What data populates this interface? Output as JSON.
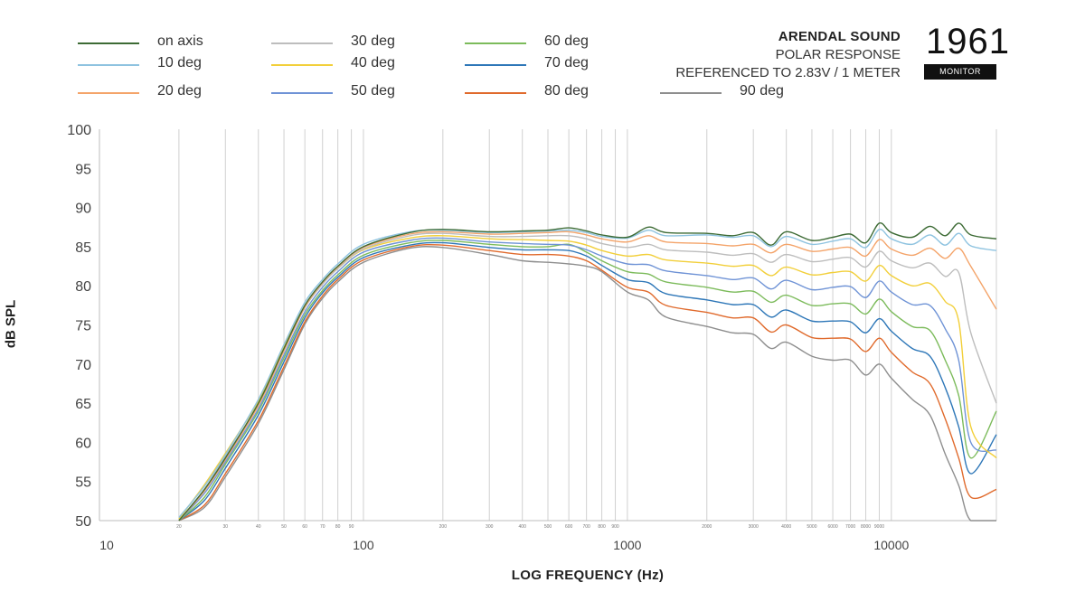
{
  "legend": [
    {
      "label": "on axis",
      "color": "#3d6b35"
    },
    {
      "label": "10 deg",
      "color": "#8ec3e0"
    },
    {
      "label": "20 deg",
      "color": "#f4a46a"
    },
    {
      "label": "30 deg",
      "color": "#bdbdbd"
    },
    {
      "label": "40 deg",
      "color": "#f2cf3a"
    },
    {
      "label": "50 deg",
      "color": "#6f93d6"
    },
    {
      "label": "60 deg",
      "color": "#7cbb5b"
    },
    {
      "label": "70 deg",
      "color": "#2e77b8"
    },
    {
      "label": "80 deg",
      "color": "#e06a2c"
    },
    {
      "label": "90 deg",
      "color": "#8e8e8e"
    }
  ],
  "brand": {
    "name": "ARENDAL SOUND",
    "line1": "POLAR RESPONSE",
    "line2": "REFERENCED TO 2.83V / 1 METER",
    "model": "1961",
    "badge": "MONITOR"
  },
  "chart_data": {
    "type": "line",
    "xscale": "log",
    "xlim": [
      10,
      25000
    ],
    "ylim": [
      50,
      100
    ],
    "xlabel": "LOG FREQUENCY (Hz)",
    "ylabel": "dB SPL",
    "grid": "vertical",
    "y_ticks": [
      100,
      95,
      90,
      85,
      80,
      75,
      70,
      65,
      60,
      55,
      50
    ],
    "x_major_ticks": [
      10,
      100,
      1000,
      10000
    ],
    "x_major_tick_labels": [
      "10",
      "100",
      "1000",
      "10000"
    ],
    "x_minor_ticks": [
      20,
      30,
      40,
      50,
      60,
      70,
      80,
      90,
      200,
      300,
      400,
      500,
      600,
      700,
      800,
      900,
      2000,
      3000,
      4000,
      5000,
      6000,
      7000,
      8000,
      9000
    ],
    "x_minor_tick_labels": [
      "20",
      "30",
      "40",
      "50",
      "60",
      "70",
      "80",
      "90",
      "200",
      "300",
      "400",
      "500",
      "600",
      "700",
      "800",
      "900",
      "2000",
      "3000",
      "4000",
      "5000",
      "6000",
      "7000",
      "8000",
      "9000"
    ],
    "x": [
      20,
      25,
      30,
      40,
      50,
      60,
      70,
      80,
      100,
      150,
      200,
      300,
      400,
      500,
      600,
      700,
      800,
      1000,
      1200,
      1400,
      2000,
      2500,
      3000,
      3500,
      4000,
      5000,
      6000,
      7000,
      8000,
      9000,
      10000,
      12000,
      14000,
      16000,
      18000,
      20000,
      25000
    ],
    "series": [
      {
        "name": "on axis",
        "values": [
          50,
          54,
          58,
          65,
          72,
          77.5,
          80.5,
          82.5,
          85,
          86.8,
          87.2,
          86.9,
          87,
          87.1,
          87.4,
          87,
          86.5,
          86.2,
          87.5,
          86.8,
          86.7,
          86.4,
          86.8,
          85.2,
          86.9,
          85.8,
          86.2,
          86.6,
          85.5,
          88,
          86.8,
          86.2,
          87.6,
          86.4,
          88,
          86.5,
          86
        ]
      },
      {
        "name": "10 deg",
        "values": [
          50.4,
          54.4,
          58.4,
          65.5,
          72.5,
          77.9,
          80.8,
          82.8,
          85.3,
          86.9,
          87.1,
          86.8,
          86.9,
          87,
          87.1,
          86.8,
          86.3,
          86.1,
          87.1,
          86.4,
          86.5,
          86.2,
          86.4,
          85,
          86.3,
          85.3,
          85.7,
          86,
          84.9,
          87.2,
          86,
          85.3,
          86.5,
          85.2,
          86.7,
          85.1,
          84.5
        ]
      },
      {
        "name": "20 deg",
        "values": [
          50,
          53.8,
          57.8,
          64.7,
          71.7,
          77.3,
          80.4,
          82.4,
          84.9,
          86.6,
          86.9,
          86.6,
          86.7,
          86.8,
          86.9,
          86.5,
          86,
          85.6,
          86.4,
          85.6,
          85.4,
          85.1,
          85.3,
          84.2,
          85.3,
          84.4,
          84.7,
          84.9,
          83.8,
          85.9,
          84.7,
          83.9,
          84.8,
          83.5,
          84.8,
          82.5,
          77
        ]
      },
      {
        "name": "30 deg",
        "values": [
          50,
          54,
          58.2,
          64.8,
          71.8,
          77.2,
          80.2,
          82.2,
          84.7,
          86.4,
          86.7,
          86.3,
          86.3,
          86.4,
          86.4,
          86,
          85.4,
          84.9,
          85.3,
          84.6,
          84.3,
          83.9,
          84.1,
          83,
          84,
          83.1,
          83.4,
          83.6,
          82.4,
          84.4,
          83.2,
          82.3,
          82.9,
          81.2,
          81.7,
          74,
          65
        ]
      },
      {
        "name": "40 deg",
        "values": [
          50.2,
          54.6,
          58.6,
          65.3,
          72.2,
          77.5,
          80.4,
          82.2,
          84.6,
          86.1,
          86.4,
          86,
          85.9,
          85.8,
          85.7,
          85.2,
          84.5,
          83.8,
          84,
          83.3,
          82.9,
          82.5,
          82.6,
          81.3,
          82.4,
          81.4,
          81.7,
          81.8,
          80.6,
          82.6,
          81.3,
          80,
          80.3,
          78,
          75.5,
          62,
          58
        ]
      },
      {
        "name": "50 deg",
        "values": [
          49.5,
          53.5,
          57.5,
          64.3,
          71.2,
          76.7,
          79.8,
          81.8,
          84.3,
          85.8,
          86.1,
          85.6,
          85.4,
          85.3,
          85.2,
          84.6,
          83.8,
          82.8,
          82.7,
          81.9,
          81.3,
          80.8,
          81,
          79.6,
          80.7,
          79.5,
          79.8,
          79.9,
          78.5,
          80.6,
          79.2,
          77.6,
          77.5,
          74.5,
          70.5,
          60,
          59
        ]
      },
      {
        "name": "60 deg",
        "values": [
          49.2,
          53,
          57.2,
          64,
          70.8,
          76.3,
          79.4,
          81.4,
          83.9,
          85.5,
          85.8,
          85.3,
          85,
          85,
          85.3,
          84.3,
          83.2,
          81.8,
          81.5,
          80.5,
          79.8,
          79.2,
          79.3,
          77.9,
          78.8,
          77.5,
          77.7,
          77.7,
          76.4,
          78.3,
          76.7,
          74.8,
          74.3,
          70.5,
          66,
          58,
          64
        ]
      },
      {
        "name": "70 deg",
        "values": [
          48.8,
          52.6,
          56.7,
          63.5,
          70.3,
          75.9,
          79.1,
          81.1,
          83.6,
          85.2,
          85.5,
          84.9,
          84.6,
          84.6,
          84.5,
          83.8,
          82.6,
          80.8,
          80.4,
          79,
          78.2,
          77.6,
          77.6,
          76,
          76.9,
          75.5,
          75.5,
          75.4,
          74,
          75.8,
          74.2,
          72,
          71,
          67,
          62,
          56,
          61
        ]
      },
      {
        "name": "80 deg",
        "values": [
          48.3,
          52,
          56,
          62.8,
          69.7,
          75.4,
          78.7,
          80.8,
          83.3,
          85,
          85.2,
          84.5,
          84,
          84,
          83.8,
          83.2,
          82,
          79.8,
          79.2,
          77.5,
          76.6,
          75.9,
          75.9,
          74.1,
          75,
          73.4,
          73.3,
          73.2,
          71.6,
          73.3,
          71.5,
          69,
          67.5,
          63,
          58,
          53,
          54
        ]
      },
      {
        "name": "90 deg",
        "values": [
          48,
          51.7,
          55.6,
          62.4,
          69.3,
          75.1,
          78.4,
          80.5,
          83,
          84.8,
          84.9,
          84,
          83.2,
          83,
          82.8,
          82.5,
          81.8,
          79.2,
          78.2,
          76,
          74.8,
          74,
          73.8,
          72,
          72.8,
          71,
          70.5,
          70.5,
          68.6,
          70,
          68.2,
          65.5,
          63.5,
          58.5,
          54.5,
          49,
          50
        ]
      }
    ]
  }
}
